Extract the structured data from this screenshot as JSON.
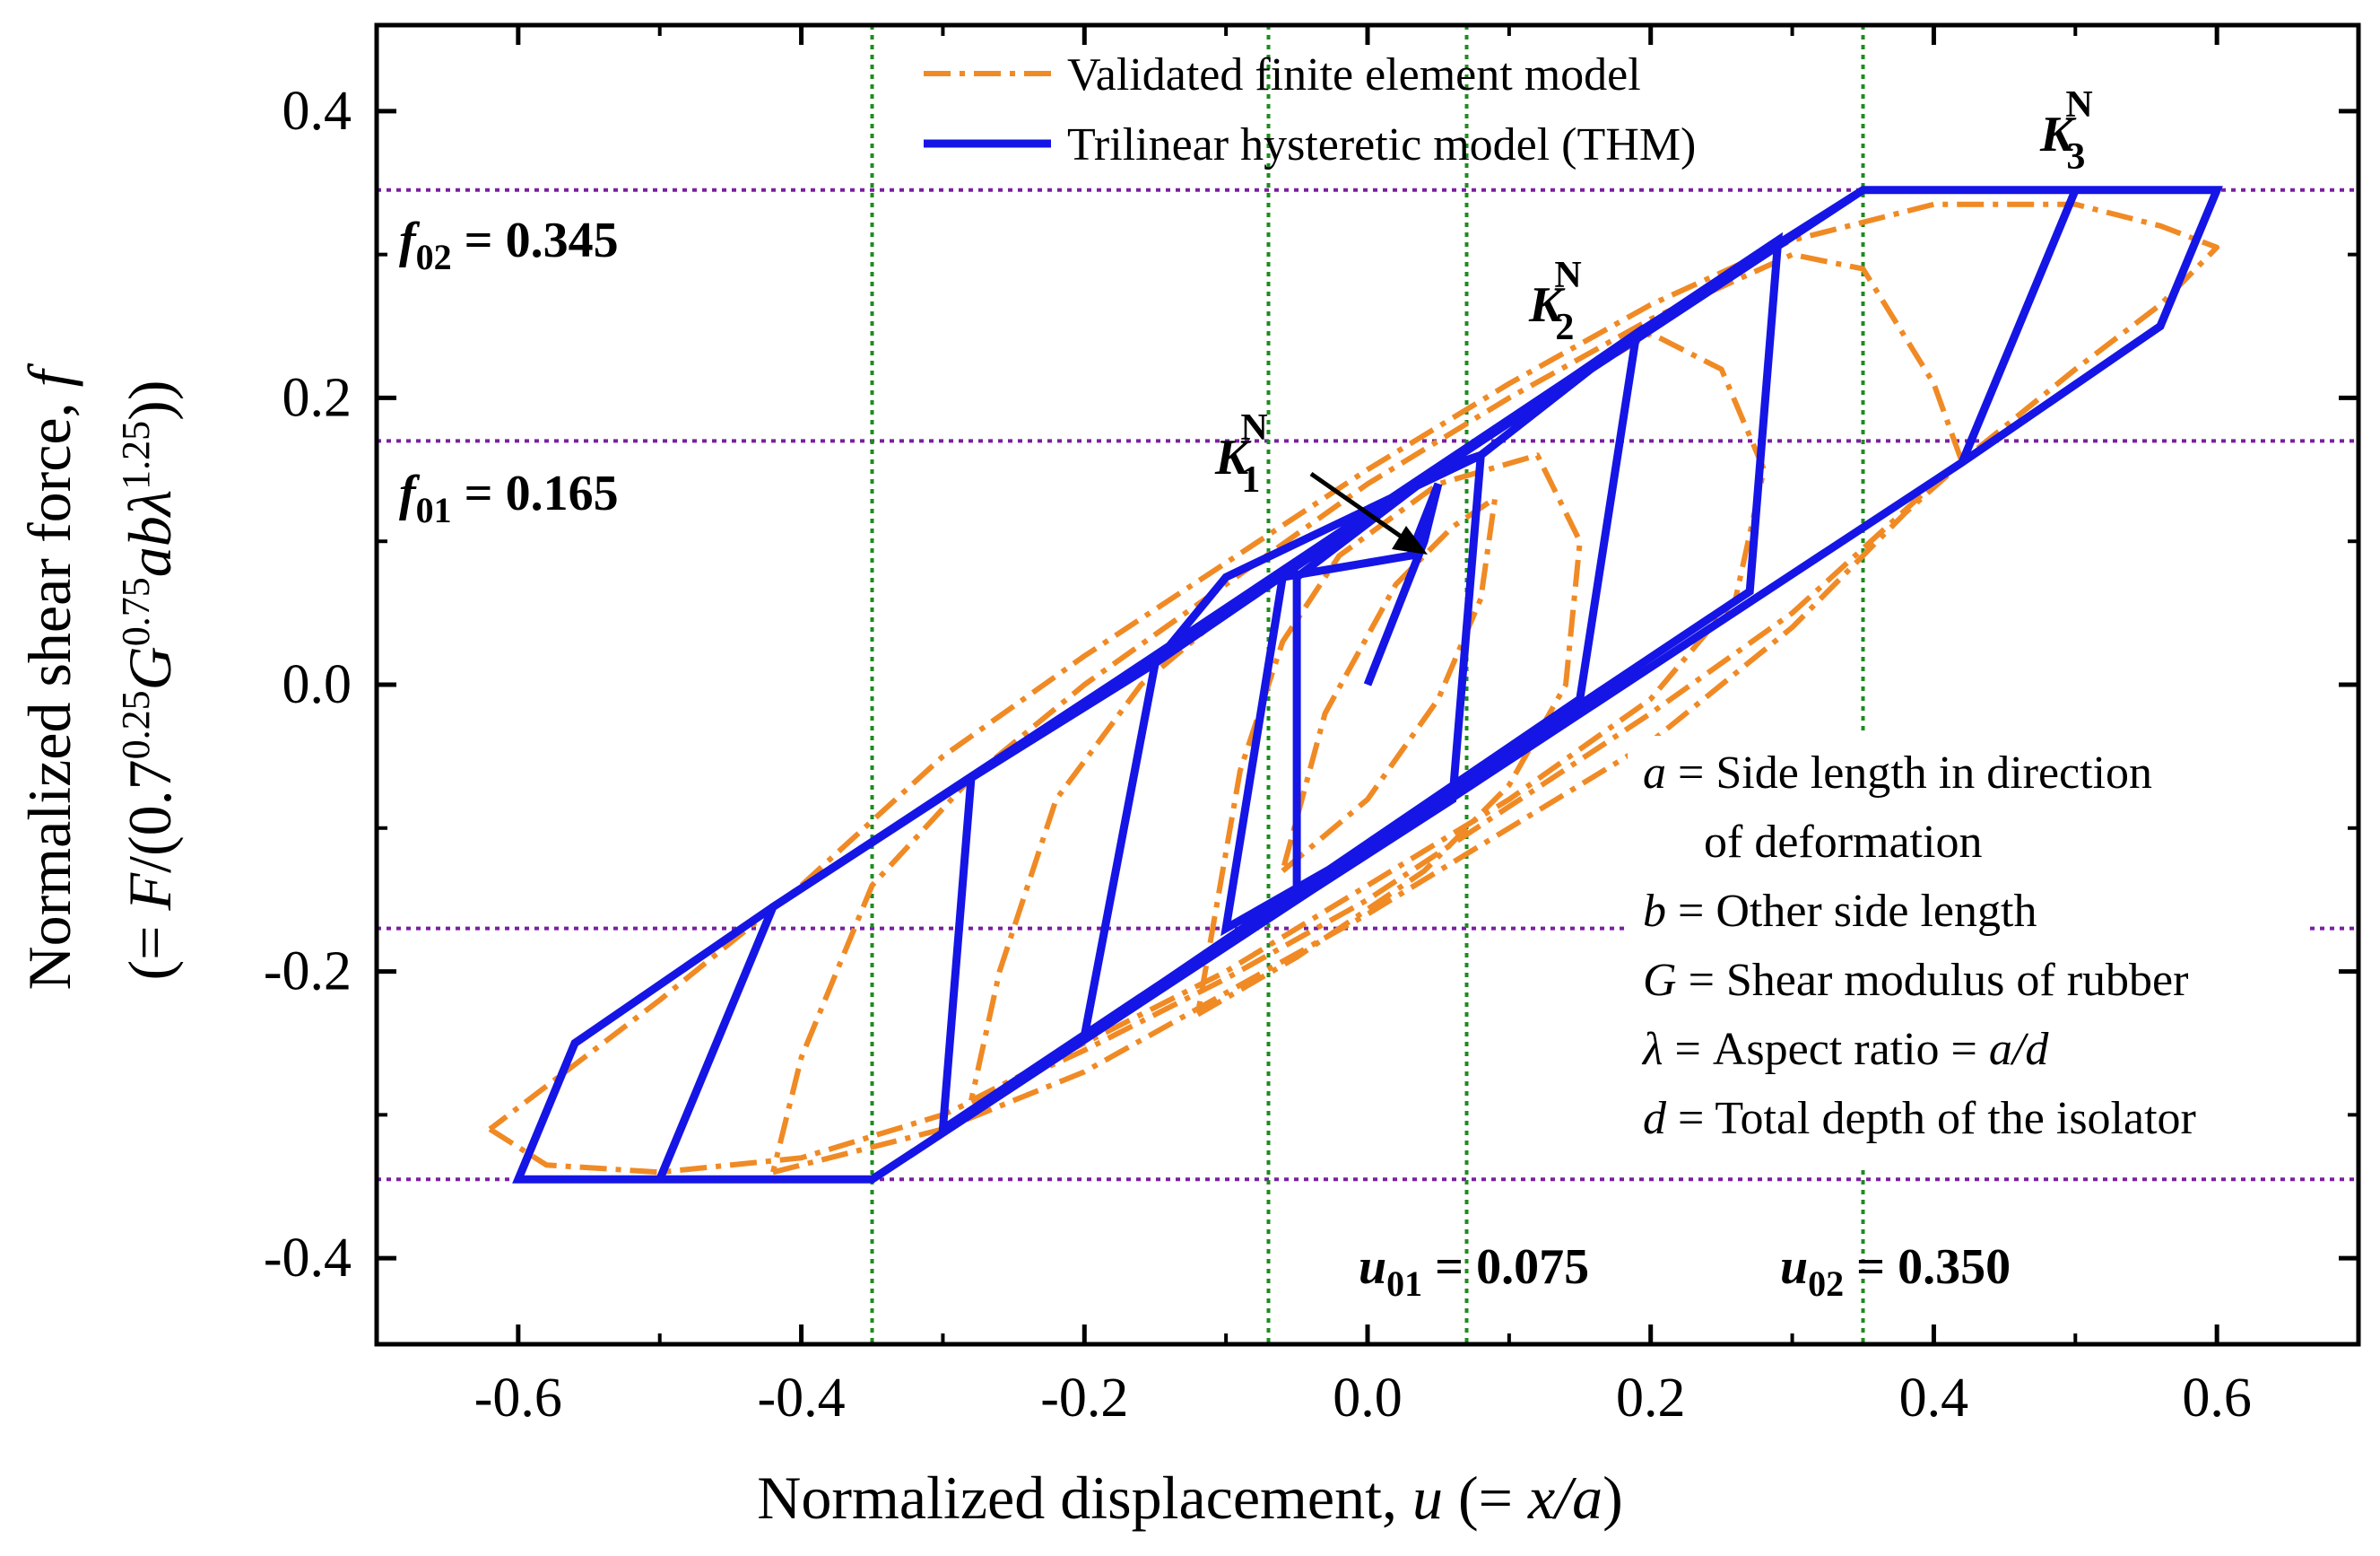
{
  "chart_data": {
    "type": "line",
    "title": "",
    "xlabel": {
      "prefix": "Normalized displacement, ",
      "var": "u",
      "open": " (= ",
      "formula": "x/a",
      "close": ")"
    },
    "ylabel": {
      "line1_prefix": "Normalized shear force, ",
      "line1_var": "f",
      "line2_open": "(= ",
      "line2_F": "F",
      "line2_slash": "/(0.7",
      "exp1": "0.25",
      "line2_G": "G",
      "exp2": "0.75",
      "line2_ab": "ab",
      "line2_lambda": "λ",
      "exp3": "1.25",
      "line2_close": "))"
    },
    "xlim": [
      -0.7,
      0.7
    ],
    "ylim": [
      -0.46,
      0.46
    ],
    "xticks": [
      -0.6,
      -0.4,
      -0.2,
      0.0,
      0.2,
      0.4,
      0.6
    ],
    "xtick_labels": [
      "-0.6",
      "-0.4",
      "-0.2",
      "0.0",
      "0.2",
      "0.4",
      "0.6"
    ],
    "yticks": [
      -0.4,
      -0.2,
      0.0,
      0.2,
      0.4
    ],
    "ytick_labels": [
      "-0.4",
      "-0.2",
      "0.0",
      "0.2",
      "0.4"
    ],
    "legend": {
      "position": "top-center",
      "entries": [
        {
          "label": "Validated finite element model",
          "style": "dash-dot",
          "color": "#F08A24"
        },
        {
          "label": "Trilinear hysteretic model (THM)",
          "style": "solid",
          "color": "#1515E6"
        }
      ]
    },
    "reference_lines": {
      "horizontal": [
        0.345,
        0.17,
        -0.17,
        -0.345
      ],
      "vertical": [
        -0.35,
        -0.07,
        0.07,
        0.35
      ],
      "h_color": "#7A1FA2",
      "v_color": "#1E8B1E"
    },
    "annotations": {
      "f02": {
        "var": "f",
        "sub": "02",
        "value": " = 0.345"
      },
      "f01": {
        "var": "f",
        "sub": "01",
        "value": " = 0.165"
      },
      "u01": {
        "var": "u",
        "sub": "01",
        "value": " = 0.075"
      },
      "u02": {
        "var": "u",
        "sub": "02",
        "value": " = 0.350"
      },
      "K1": {
        "var": "K",
        "sub": "1",
        "sup": "N"
      },
      "K2": {
        "var": "K",
        "sub": "2",
        "sup": "N"
      },
      "K3": {
        "var": "K",
        "sub": "3",
        "sup": "N"
      }
    },
    "definitions": [
      {
        "sym": "a",
        "text": " = Side length in direction"
      },
      {
        "sym": "",
        "text": "of deformation"
      },
      {
        "sym": "b",
        "text": " = Other side length"
      },
      {
        "sym": "G",
        "text": " = Shear modulus of rubber"
      },
      {
        "sym": "λ",
        "text": " = Aspect ratio = ",
        "tail_italic": "a/d"
      },
      {
        "sym": "d",
        "text": " = Total depth of the isolator"
      }
    ],
    "series": [
      {
        "name": "Trilinear hysteretic model (THM)",
        "color": "#1515E6",
        "style": "solid",
        "points": [
          [
            0.0,
            0.0
          ],
          [
            0.04,
            0.1
          ],
          [
            0.05,
            0.14
          ],
          [
            0.03,
            0.09
          ],
          [
            -0.06,
            0.075
          ],
          [
            -0.1,
            -0.17
          ],
          [
            0.06,
            -0.08
          ],
          [
            0.08,
            0.16
          ],
          [
            -0.1,
            0.075
          ],
          [
            -0.15,
            0.015
          ],
          [
            -0.2,
            -0.245
          ],
          [
            0.15,
            -0.01
          ],
          [
            0.19,
            0.245
          ],
          [
            -0.15,
            0.015
          ],
          [
            -0.28,
            -0.065
          ],
          [
            -0.3,
            -0.31
          ],
          [
            0.27,
            0.065
          ],
          [
            0.29,
            0.31
          ],
          [
            -0.28,
            -0.065
          ],
          [
            -0.42,
            -0.155
          ],
          [
            -0.5,
            -0.345
          ],
          [
            -0.35,
            -0.345
          ],
          [
            0.42,
            0.155
          ],
          [
            0.5,
            0.345
          ],
          [
            0.35,
            0.345
          ],
          [
            -0.42,
            -0.155
          ],
          [
            -0.56,
            -0.25
          ],
          [
            -0.6,
            -0.345
          ],
          [
            -0.35,
            -0.345
          ],
          [
            0.42,
            0.155
          ],
          [
            0.56,
            0.25
          ],
          [
            0.6,
            0.345
          ],
          [
            0.35,
            0.345
          ],
          [
            0.19,
            0.245
          ],
          [
            0.08,
            0.16
          ],
          [
            0.05,
            0.15
          ],
          [
            -0.05,
            0.075
          ],
          [
            -0.05,
            -0.15
          ],
          [
            0.06,
            -0.08
          ]
        ]
      },
      {
        "name": "Validated finite element model",
        "color": "#F08A24",
        "style": "dash-dot",
        "loops": [
          [
            [
              -0.62,
              -0.31
            ],
            [
              -0.58,
              -0.335
            ],
            [
              -0.5,
              -0.34
            ],
            [
              -0.4,
              -0.33
            ],
            [
              -0.3,
              -0.3
            ],
            [
              -0.2,
              -0.255
            ],
            [
              -0.1,
              -0.205
            ],
            [
              0.0,
              -0.15
            ],
            [
              0.1,
              -0.085
            ],
            [
              0.2,
              -0.02
            ],
            [
              0.3,
              0.05
            ],
            [
              0.4,
              0.14
            ],
            [
              0.5,
              0.22
            ],
            [
              0.56,
              0.265
            ],
            [
              0.6,
              0.305
            ],
            [
              0.56,
              0.32
            ],
            [
              0.5,
              0.335
            ],
            [
              0.4,
              0.335
            ],
            [
              0.3,
              0.31
            ],
            [
              0.2,
              0.265
            ],
            [
              0.1,
              0.21
            ],
            [
              0.0,
              0.15
            ],
            [
              -0.1,
              0.085
            ],
            [
              -0.2,
              0.02
            ],
            [
              -0.3,
              -0.05
            ],
            [
              -0.4,
              -0.14
            ],
            [
              -0.5,
              -0.22
            ],
            [
              -0.58,
              -0.28
            ],
            [
              -0.62,
              -0.31
            ]
          ],
          [
            [
              -0.42,
              -0.34
            ],
            [
              -0.3,
              -0.31
            ],
            [
              -0.2,
              -0.27
            ],
            [
              -0.1,
              -0.215
            ],
            [
              0.0,
              -0.16
            ],
            [
              0.1,
              -0.1
            ],
            [
              0.2,
              -0.04
            ],
            [
              0.3,
              0.04
            ],
            [
              0.38,
              0.12
            ],
            [
              0.42,
              0.155
            ],
            [
              0.4,
              0.21
            ],
            [
              0.35,
              0.29
            ],
            [
              0.3,
              0.3
            ],
            [
              0.2,
              0.255
            ],
            [
              0.1,
              0.2
            ],
            [
              0.0,
              0.14
            ],
            [
              -0.1,
              0.07
            ],
            [
              -0.2,
              0.0
            ],
            [
              -0.28,
              -0.065
            ],
            [
              -0.35,
              -0.14
            ],
            [
              -0.4,
              -0.26
            ],
            [
              -0.42,
              -0.34
            ]
          ],
          [
            [
              -0.28,
              -0.29
            ],
            [
              -0.2,
              -0.25
            ],
            [
              -0.1,
              -0.2
            ],
            [
              0.0,
              -0.14
            ],
            [
              0.1,
              -0.08
            ],
            [
              0.2,
              -0.01
            ],
            [
              0.26,
              0.06
            ],
            [
              0.28,
              0.15
            ],
            [
              0.25,
              0.22
            ],
            [
              0.2,
              0.245
            ],
            [
              0.1,
              0.185
            ],
            [
              0.0,
              0.12
            ],
            [
              -0.1,
              0.05
            ],
            [
              -0.16,
              0.0
            ],
            [
              -0.22,
              -0.08
            ],
            [
              -0.26,
              -0.2
            ],
            [
              -0.28,
              -0.29
            ]
          ],
          [
            [
              -0.12,
              -0.23
            ],
            [
              -0.05,
              -0.19
            ],
            [
              0.04,
              -0.13
            ],
            [
              0.1,
              -0.07
            ],
            [
              0.14,
              0.0
            ],
            [
              0.15,
              0.1
            ],
            [
              0.12,
              0.16
            ],
            [
              0.05,
              0.14
            ],
            [
              -0.02,
              0.09
            ],
            [
              -0.06,
              0.03
            ],
            [
              -0.09,
              -0.06
            ],
            [
              -0.12,
              -0.23
            ]
          ],
          [
            [
              -0.06,
              -0.13
            ],
            [
              0.0,
              -0.08
            ],
            [
              0.05,
              -0.01
            ],
            [
              0.08,
              0.06
            ],
            [
              0.09,
              0.13
            ],
            [
              0.06,
              0.11
            ],
            [
              0.02,
              0.07
            ],
            [
              -0.03,
              -0.02
            ],
            [
              -0.06,
              -0.13
            ]
          ]
        ]
      }
    ]
  }
}
